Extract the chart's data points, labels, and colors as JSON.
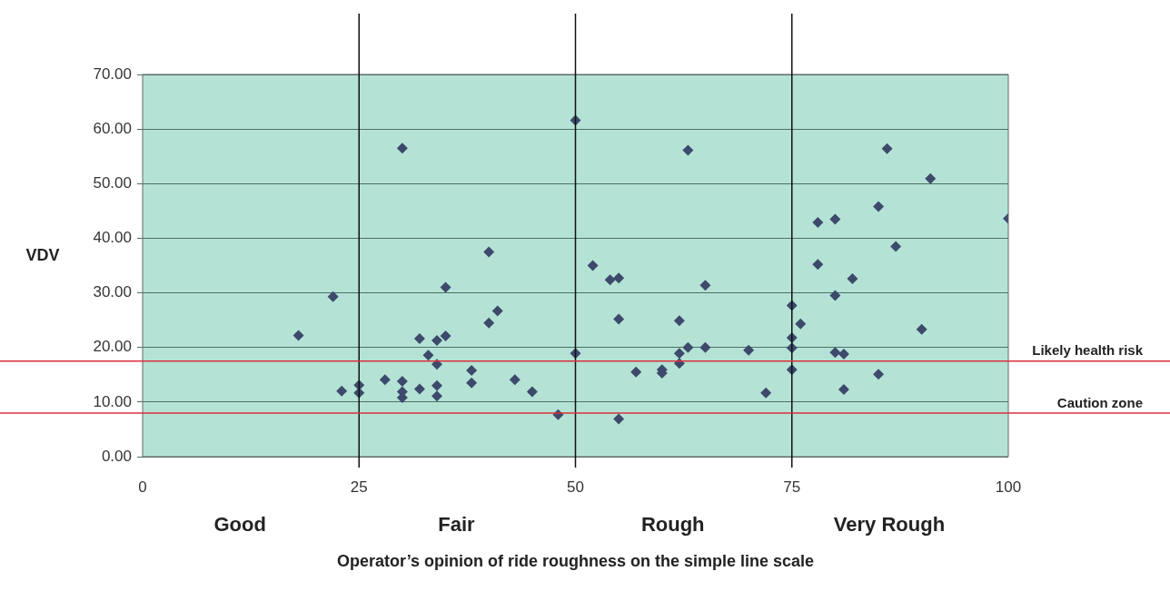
{
  "chart_data": {
    "type": "scatter",
    "xlabel": "Operator’s opinion of ride roughness on the simple line scale",
    "ylabel": "VDV",
    "annotations": [
      "Good",
      "Fair",
      "Rough",
      "Very Rough"
    ],
    "xlim": [
      0,
      100
    ],
    "xticks": [
      0,
      25,
      50,
      75,
      100
    ],
    "ylim": [
      0,
      70
    ],
    "yticks": [
      {
        "value": 0,
        "label": "0.00"
      },
      {
        "value": 10,
        "label": "10.00"
      },
      {
        "value": 20,
        "label": "20.00"
      },
      {
        "value": 30,
        "label": "30.00"
      },
      {
        "value": 40,
        "label": "40.00"
      },
      {
        "value": 50,
        "label": "50.00"
      },
      {
        "value": 60,
        "label": "60.00"
      },
      {
        "value": 70,
        "label": "70.00"
      }
    ],
    "grid": "y",
    "legend": false,
    "marker": "diamond",
    "ref_lines": [
      {
        "axis": "x",
        "value": 25,
        "label": null,
        "color": "#111111"
      },
      {
        "axis": "x",
        "value": 50,
        "label": null,
        "color": "#111111"
      },
      {
        "axis": "x",
        "value": 75,
        "label": null,
        "color": "#111111"
      },
      {
        "axis": "y",
        "value": 17.5,
        "label": "Likely health risk",
        "color": "#d9303a"
      },
      {
        "axis": "y",
        "value": 8,
        "label": "Caution zone",
        "color": "#d9303a"
      }
    ],
    "series": [
      {
        "color": "#3d4a6b",
        "x": [
          18,
          22,
          23,
          25,
          25,
          28,
          30,
          30,
          30,
          30,
          32,
          32,
          33,
          34,
          35,
          34,
          34,
          34,
          35,
          40,
          41,
          40,
          38,
          38,
          43,
          45,
          48,
          50,
          50,
          52,
          54,
          55,
          55,
          55,
          57,
          60,
          60,
          62,
          62,
          62,
          63,
          63,
          65,
          65,
          70,
          72,
          75,
          75,
          75,
          75,
          76,
          78,
          78,
          80,
          80,
          80,
          81,
          81,
          82,
          85,
          85,
          86,
          87,
          90,
          91,
          100
        ],
        "values": [
          22.2,
          29.3,
          12.0,
          13.1,
          11.7,
          14.1,
          56.5,
          13.8,
          11.9,
          10.8,
          12.4,
          21.6,
          18.6,
          21.3,
          22.1,
          16.9,
          13.0,
          11.1,
          31.0,
          37.5,
          26.7,
          24.5,
          15.8,
          13.5,
          14.1,
          11.9,
          7.7,
          61.6,
          18.9,
          35.0,
          32.4,
          32.7,
          25.2,
          6.9,
          15.5,
          15.9,
          15.3,
          24.9,
          18.9,
          17.1,
          20.0,
          56.1,
          31.4,
          20.0,
          19.5,
          11.7,
          27.7,
          21.8,
          19.9,
          15.9,
          24.3,
          42.9,
          35.2,
          43.5,
          29.5,
          19.1,
          18.8,
          12.3,
          32.6,
          45.8,
          15.1,
          56.4,
          38.5,
          23.3,
          50.9,
          43.6
        ]
      }
    ]
  }
}
